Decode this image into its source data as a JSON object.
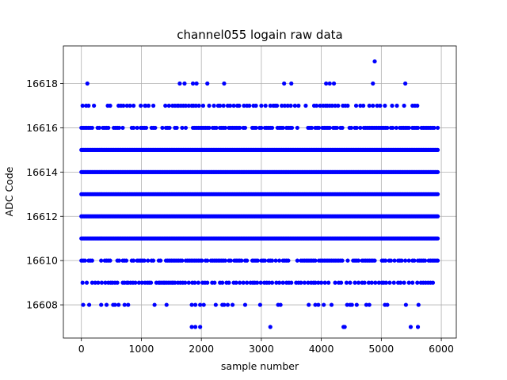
{
  "chart_data": {
    "type": "scatter",
    "title": "channel055 logain raw data",
    "xlabel": "sample number",
    "ylabel": "ADC Code",
    "xlim": [
      -300,
      6250
    ],
    "ylim": [
      16606.5,
      16619.7
    ],
    "xticks": [
      0,
      1000,
      2000,
      3000,
      4000,
      5000,
      6000
    ],
    "yticks": [
      16608,
      16610,
      16612,
      16614,
      16616,
      16618
    ],
    "grid": true,
    "marker_color": "#0000ff",
    "n_samples": 5950,
    "dense_levels": [
      16611,
      16612,
      16613,
      16614,
      16615
    ],
    "medium_levels": [
      16610,
      16616
    ],
    "sparse_levels": {
      "16609": [
        20,
        90,
        180,
        230,
        280,
        340,
        400,
        450,
        490,
        520,
        560,
        600,
        690,
        720,
        760,
        780,
        820,
        860,
        900,
        960,
        1010,
        1060,
        1100,
        1130,
        1160,
        1250,
        1290,
        1310,
        1340,
        1370,
        1390,
        1420,
        1450,
        1480,
        1510,
        1530,
        1560,
        1610,
        1650,
        1690,
        1730,
        1790,
        1850,
        1890,
        1950,
        2020,
        2060,
        2100,
        2180,
        2220,
        2310,
        2350,
        2420,
        2460,
        2540,
        2580,
        2640,
        2700,
        2760,
        2820,
        2860,
        2890,
        2930,
        2990,
        3050,
        3090,
        3130,
        3180,
        3250,
        3300,
        3360,
        3420,
        3460,
        3500,
        3580,
        3620,
        3660,
        3720,
        3780,
        3830,
        3870,
        3900,
        3950,
        4000,
        4060,
        4120,
        4230,
        4290,
        4330,
        4420,
        4480,
        4560,
        4620,
        4680,
        4720,
        4790,
        4840,
        4900,
        4960,
        5010,
        5040,
        5080,
        5140,
        5210,
        5280,
        5320,
        5380,
        5460,
        5520,
        5600,
        5660,
        5700,
        5740,
        5780,
        5820,
        5860
      ],
      "16608": [
        30,
        130,
        330,
        420,
        530,
        560,
        620,
        720,
        780,
        1220,
        1420,
        1840,
        1900,
        1980,
        2040,
        2240,
        2350,
        2380,
        2440,
        2520,
        2730,
        2980,
        3280,
        3320,
        3790,
        3900,
        3950,
        4040,
        4170,
        4430,
        4480,
        4510,
        4590,
        4750,
        4800,
        5060,
        5100,
        5410,
        5620
      ],
      "16607": [
        1840,
        1900,
        1980,
        3150,
        4370,
        4390,
        5490,
        5610
      ],
      "16617": [
        20,
        80,
        120,
        210,
        440,
        480,
        620,
        660,
        700,
        760,
        810,
        870,
        990,
        1060,
        1070,
        1120,
        1200,
        1400,
        1460,
        1520,
        1560,
        1600,
        1620,
        1660,
        1700,
        1740,
        1790,
        1840,
        1870,
        1910,
        1960,
        2030,
        2130,
        2210,
        2280,
        2310,
        2370,
        2440,
        2480,
        2540,
        2600,
        2630,
        2710,
        2760,
        2800,
        2870,
        2910,
        3000,
        3070,
        3150,
        3200,
        3230,
        3260,
        3340,
        3390,
        3440,
        3490,
        3560,
        3620,
        3740,
        3880,
        3920,
        3980,
        4030,
        4070,
        4100,
        4140,
        4180,
        4230,
        4280,
        4360,
        4400,
        4440,
        4580,
        4650,
        4700,
        4800,
        4860,
        4930,
        4980,
        5060,
        5180,
        5260,
        5380,
        5520,
        5560,
        5600
      ],
      "16618": [
        100,
        1640,
        1720,
        1860,
        1920,
        2100,
        2380,
        3380,
        3500,
        4080,
        4140,
        4210,
        4860,
        5400
      ],
      "16619": [
        4890
      ]
    }
  }
}
